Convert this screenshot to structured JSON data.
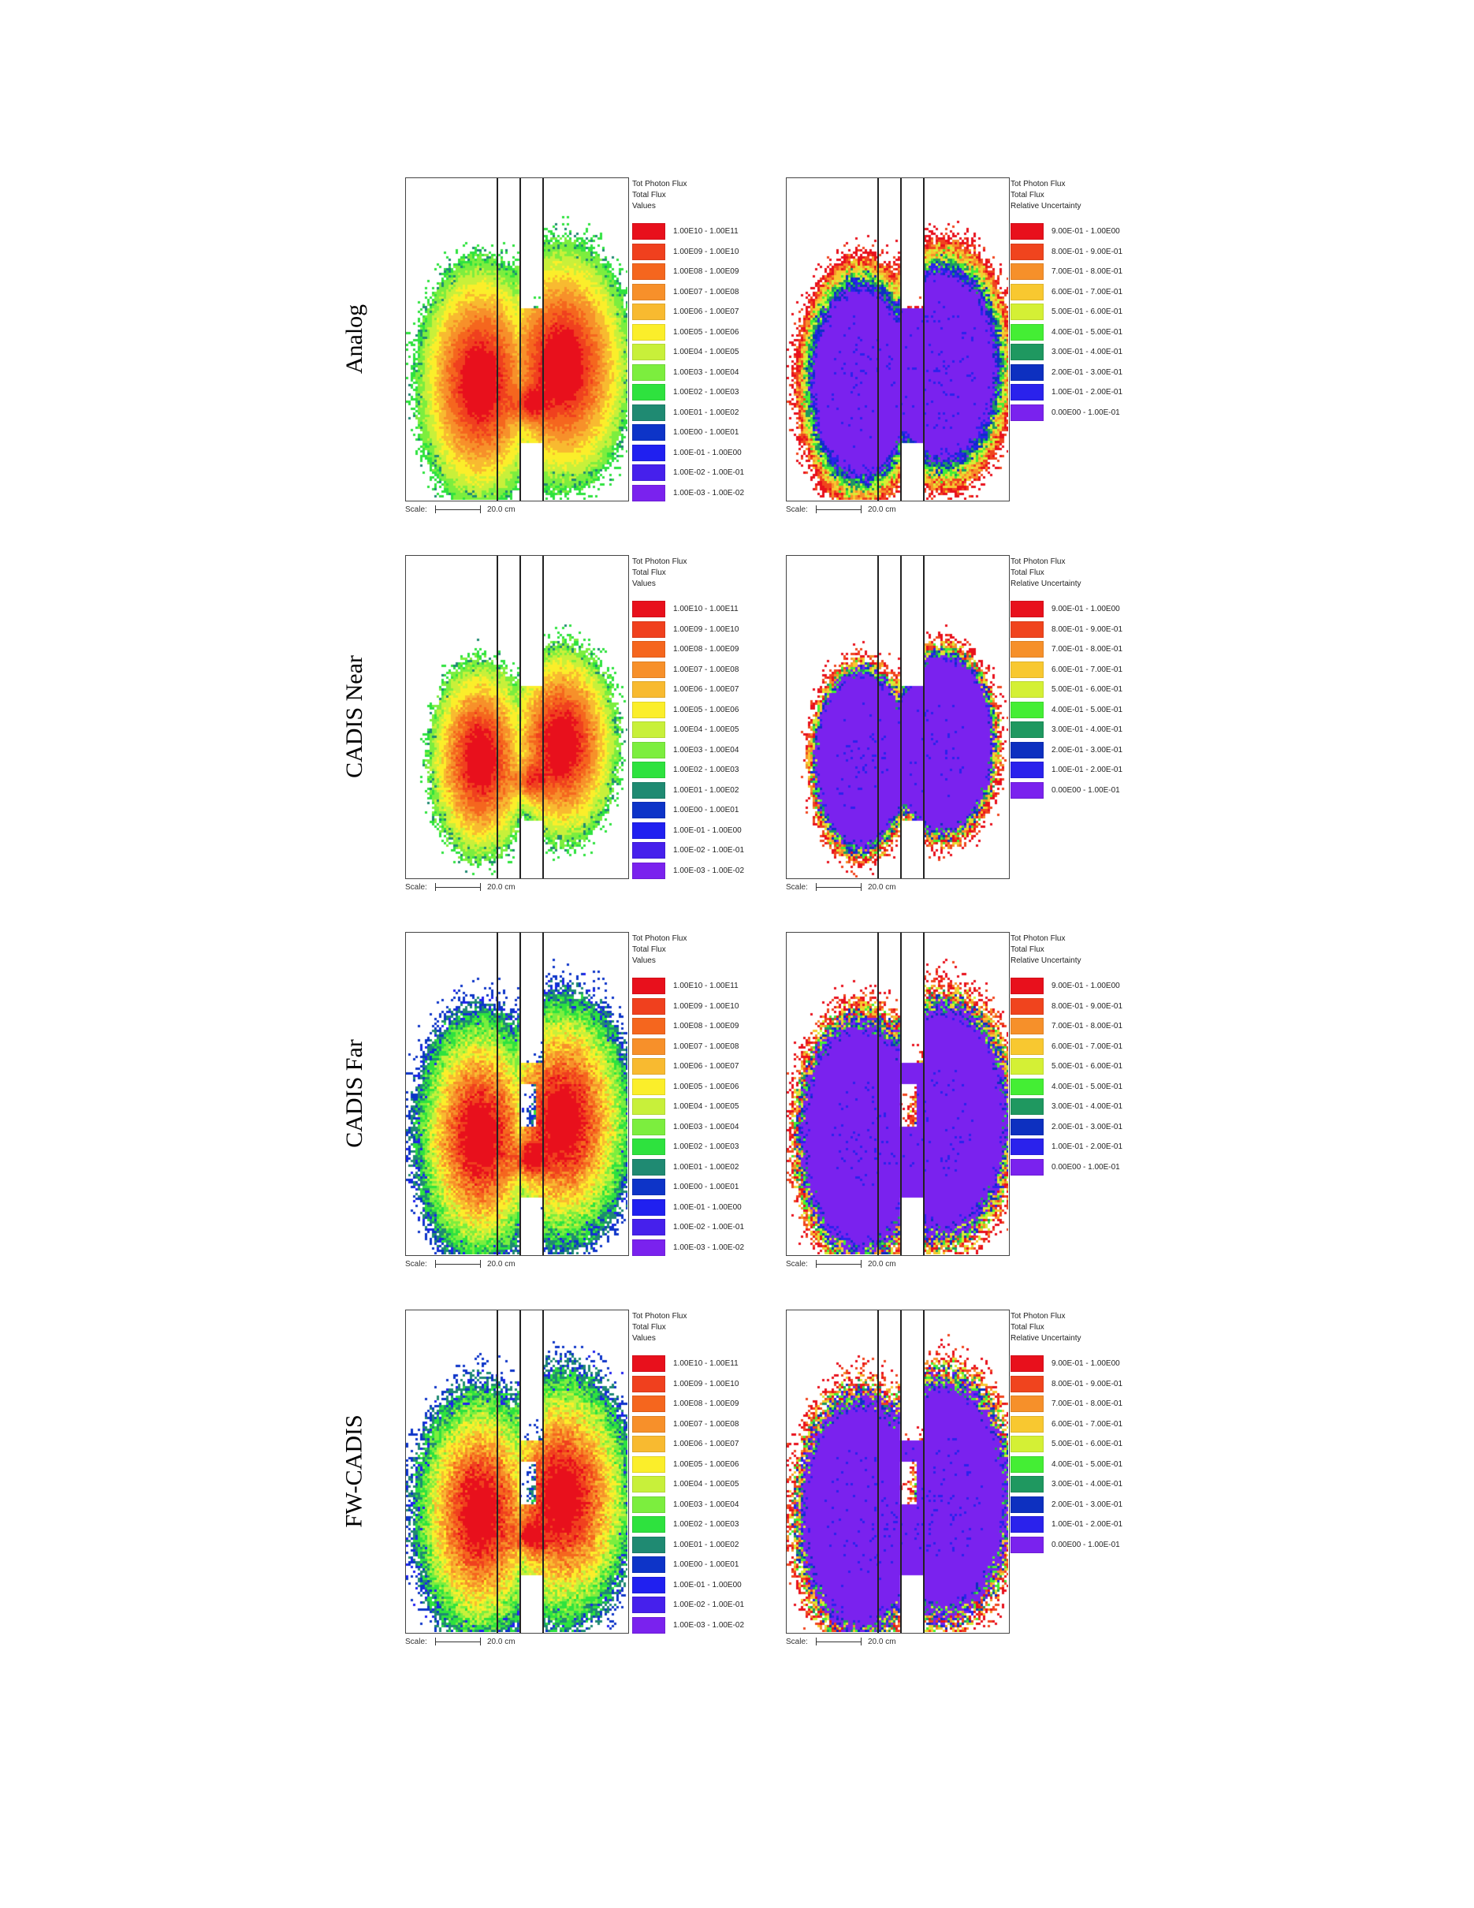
{
  "chart_data": {
    "type": "heatmap",
    "rows": [
      "Analog",
      "CADIS Near",
      "CADIS Far",
      "FW-CADIS"
    ],
    "columns": [
      {
        "legend_title": [
          "Tot Photon Flux",
          "Total Flux",
          "Values"
        ],
        "bins": [
          {
            "label": "1.00E10 - 1.00E11",
            "color": "#e8101c"
          },
          {
            "label": "1.00E09 - 1.00E10",
            "color": "#f0401e"
          },
          {
            "label": "1.00E08 - 1.00E09",
            "color": "#f5661e"
          },
          {
            "label": "1.00E07 - 1.00E08",
            "color": "#f7902a"
          },
          {
            "label": "1.00E06 - 1.00E07",
            "color": "#f8ba30"
          },
          {
            "label": "1.00E05 - 1.00E06",
            "color": "#fbee2a"
          },
          {
            "label": "1.00E04 - 1.00E05",
            "color": "#c8f03a"
          },
          {
            "label": "1.00E03 - 1.00E04",
            "color": "#7cee3e"
          },
          {
            "label": "1.00E02 - 1.00E03",
            "color": "#2ee23e"
          },
          {
            "label": "1.00E01 - 1.00E02",
            "color": "#1f8a72"
          },
          {
            "label": "1.00E00 - 1.00E01",
            "color": "#0d34c8"
          },
          {
            "label": "1.00E-01 - 1.00E00",
            "color": "#2020f0"
          },
          {
            "label": "1.00E-02 - 1.00E-01",
            "color": "#4620ec"
          },
          {
            "label": "1.00E-03 - 1.00E-02",
            "color": "#7a22ee"
          }
        ]
      },
      {
        "legend_title": [
          "Tot Photon Flux",
          "Total Flux",
          "Relative Uncertainty"
        ],
        "bins": [
          {
            "label": "9.00E-01 - 1.00E00",
            "color": "#e8101c"
          },
          {
            "label": "8.00E-01 - 9.00E-01",
            "color": "#f0441e"
          },
          {
            "label": "7.00E-01 - 8.00E-01",
            "color": "#f6902a"
          },
          {
            "label": "6.00E-01 - 7.00E-01",
            "color": "#f8c830"
          },
          {
            "label": "5.00E-01 - 6.00E-01",
            "color": "#d4f035"
          },
          {
            "label": "4.00E-01 - 5.00E-01",
            "color": "#44ee34"
          },
          {
            "label": "3.00E-01 - 4.00E-01",
            "color": "#1f9860"
          },
          {
            "label": "2.00E-01 - 3.00E-01",
            "color": "#0d30c0"
          },
          {
            "label": "1.00E-01 - 2.00E-01",
            "color": "#2a22ec"
          },
          {
            "label": "0.00E00 - 1.00E-01",
            "color": "#7a22ee"
          }
        ]
      }
    ],
    "scale_label": "Scale:",
    "scale_length": "20.0 cm"
  }
}
